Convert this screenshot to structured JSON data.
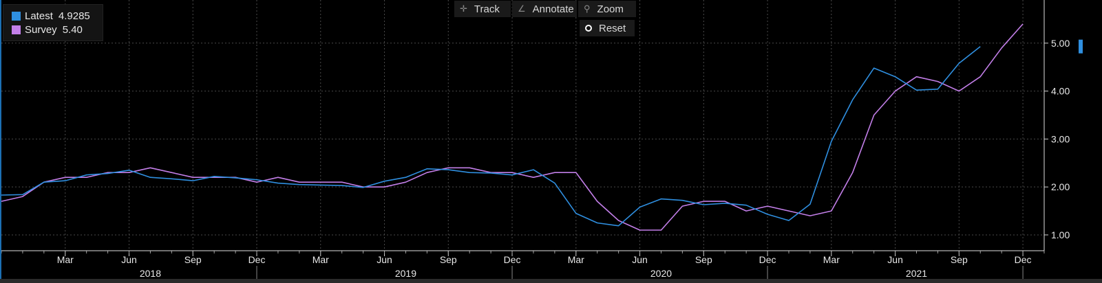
{
  "legend": {
    "items": [
      {
        "label": "Latest",
        "value": "4.9285",
        "color": "#2f8fe0"
      },
      {
        "label": "Survey",
        "value": "5.40",
        "color": "#c37fe9"
      }
    ]
  },
  "toolbar": {
    "track_label": "Track",
    "annotate_label": "Annotate",
    "zoom_label": "Zoom",
    "reset_label": "Reset"
  },
  "chart_data": {
    "type": "line",
    "x_axis": {
      "ticks": [
        {
          "date": "2018-03",
          "label": "Mar"
        },
        {
          "date": "2018-06",
          "label": "Jun"
        },
        {
          "date": "2018-09",
          "label": "Sep"
        },
        {
          "date": "2018-12",
          "label": "Dec"
        },
        {
          "date": "2019-03",
          "label": "Mar"
        },
        {
          "date": "2019-06",
          "label": "Jun"
        },
        {
          "date": "2019-09",
          "label": "Sep"
        },
        {
          "date": "2019-12",
          "label": "Dec"
        },
        {
          "date": "2020-03",
          "label": "Mar"
        },
        {
          "date": "2020-06",
          "label": "Jun"
        },
        {
          "date": "2020-09",
          "label": "Sep"
        },
        {
          "date": "2020-12",
          "label": "Dec"
        },
        {
          "date": "2021-03",
          "label": "Mar"
        },
        {
          "date": "2021-06",
          "label": "Jun"
        },
        {
          "date": "2021-09",
          "label": "Sep"
        },
        {
          "date": "2021-12",
          "label": "Dec"
        }
      ],
      "years": [
        {
          "year": "2018",
          "center": "2018-07"
        },
        {
          "year": "2019",
          "center": "2019-07"
        },
        {
          "year": "2020",
          "center": "2020-07"
        },
        {
          "year": "2021",
          "center": "2021-07"
        }
      ],
      "year_boundaries": [
        "2018-12",
        "2019-12",
        "2020-12",
        "2021-12"
      ],
      "range": [
        "2017-12",
        "2022-01"
      ]
    },
    "y_axis": {
      "ticks": [
        1.0,
        2.0,
        3.0,
        4.0,
        5.0
      ],
      "tick_labels": [
        "1.00",
        "2.00",
        "3.00",
        "4.00",
        "5.00"
      ],
      "ylim": [
        0.67,
        5.9
      ]
    },
    "grid": true,
    "legend_position": "top-left",
    "series": [
      {
        "name": "Latest",
        "color": "#2f8fe0",
        "points": [
          [
            "2017-12",
            1.83
          ],
          [
            "2018-01",
            1.84
          ],
          [
            "2018-02",
            2.1
          ],
          [
            "2018-03",
            2.13
          ],
          [
            "2018-04",
            2.25
          ],
          [
            "2018-05",
            2.28
          ],
          [
            "2018-06",
            2.35
          ],
          [
            "2018-07",
            2.2
          ],
          [
            "2018-08",
            2.17
          ],
          [
            "2018-09",
            2.13
          ],
          [
            "2018-10",
            2.22
          ],
          [
            "2018-11",
            2.19
          ],
          [
            "2018-12",
            2.15
          ],
          [
            "2019-01",
            2.08
          ],
          [
            "2019-02",
            2.05
          ],
          [
            "2019-03",
            2.04
          ],
          [
            "2019-04",
            2.03
          ],
          [
            "2019-05",
            1.99
          ],
          [
            "2019-06",
            2.12
          ],
          [
            "2019-07",
            2.2
          ],
          [
            "2019-08",
            2.38
          ],
          [
            "2019-09",
            2.36
          ],
          [
            "2019-10",
            2.3
          ],
          [
            "2019-11",
            2.29
          ],
          [
            "2019-12",
            2.25
          ],
          [
            "2020-01",
            2.36
          ],
          [
            "2020-02",
            2.08
          ],
          [
            "2020-03",
            1.45
          ],
          [
            "2020-04",
            1.25
          ],
          [
            "2020-05",
            1.19
          ],
          [
            "2020-06",
            1.58
          ],
          [
            "2020-07",
            1.75
          ],
          [
            "2020-08",
            1.72
          ],
          [
            "2020-09",
            1.63
          ],
          [
            "2020-10",
            1.66
          ],
          [
            "2020-11",
            1.62
          ],
          [
            "2020-12",
            1.43
          ],
          [
            "2021-01",
            1.3
          ],
          [
            "2021-02",
            1.64
          ],
          [
            "2021-03",
            2.95
          ],
          [
            "2021-04",
            3.82
          ],
          [
            "2021-05",
            4.48
          ],
          [
            "2021-06",
            4.3
          ],
          [
            "2021-07",
            4.02
          ],
          [
            "2021-08",
            4.04
          ],
          [
            "2021-09",
            4.58
          ],
          [
            "2021-10",
            4.93
          ]
        ]
      },
      {
        "name": "Survey",
        "color": "#c37fe9",
        "points": [
          [
            "2017-12",
            1.7
          ],
          [
            "2018-01",
            1.8
          ],
          [
            "2018-02",
            2.1
          ],
          [
            "2018-03",
            2.2
          ],
          [
            "2018-04",
            2.2
          ],
          [
            "2018-05",
            2.3
          ],
          [
            "2018-06",
            2.3
          ],
          [
            "2018-07",
            2.4
          ],
          [
            "2018-08",
            2.3
          ],
          [
            "2018-09",
            2.2
          ],
          [
            "2018-10",
            2.2
          ],
          [
            "2018-11",
            2.2
          ],
          [
            "2018-12",
            2.1
          ],
          [
            "2019-01",
            2.2
          ],
          [
            "2019-02",
            2.1
          ],
          [
            "2019-03",
            2.1
          ],
          [
            "2019-04",
            2.1
          ],
          [
            "2019-05",
            2.0
          ],
          [
            "2019-06",
            2.0
          ],
          [
            "2019-07",
            2.1
          ],
          [
            "2019-08",
            2.3
          ],
          [
            "2019-09",
            2.4
          ],
          [
            "2019-10",
            2.4
          ],
          [
            "2019-11",
            2.3
          ],
          [
            "2019-12",
            2.3
          ],
          [
            "2020-01",
            2.2
          ],
          [
            "2020-02",
            2.3
          ],
          [
            "2020-03",
            2.3
          ],
          [
            "2020-04",
            1.7
          ],
          [
            "2020-05",
            1.3
          ],
          [
            "2020-06",
            1.1
          ],
          [
            "2020-07",
            1.1
          ],
          [
            "2020-08",
            1.6
          ],
          [
            "2020-09",
            1.7
          ],
          [
            "2020-10",
            1.7
          ],
          [
            "2020-11",
            1.5
          ],
          [
            "2020-12",
            1.6
          ],
          [
            "2021-01",
            1.5
          ],
          [
            "2021-02",
            1.4
          ],
          [
            "2021-03",
            1.5
          ],
          [
            "2021-04",
            2.3
          ],
          [
            "2021-05",
            3.5
          ],
          [
            "2021-06",
            4.0
          ],
          [
            "2021-07",
            4.3
          ],
          [
            "2021-08",
            4.2
          ],
          [
            "2021-09",
            4.0
          ],
          [
            "2021-10",
            4.3
          ],
          [
            "2021-11",
            4.9
          ],
          [
            "2021-12",
            5.4
          ]
        ]
      }
    ]
  }
}
